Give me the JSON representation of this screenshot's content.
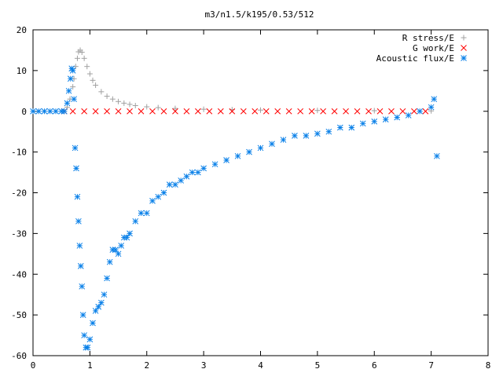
{
  "chart_data": {
    "type": "scatter",
    "title": "m3/n1.5/k195/0.53/512",
    "xlabel": "",
    "ylabel": "",
    "xlim": [
      0,
      8
    ],
    "ylim": [
      -60,
      20
    ],
    "xticks": [
      0,
      1,
      2,
      3,
      4,
      5,
      6,
      7,
      8
    ],
    "yticks": [
      -60,
      -50,
      -40,
      -30,
      -20,
      -10,
      0,
      10,
      20
    ],
    "grid": false,
    "legend_position": "top-right",
    "series": [
      {
        "name": "R stress/E",
        "marker": "plus",
        "color": "#a0a0a0",
        "x": [
          0.55,
          0.6,
          0.65,
          0.7,
          0.72,
          0.75,
          0.78,
          0.8,
          0.83,
          0.86,
          0.9,
          0.95,
          1.0,
          1.05,
          1.1,
          1.2,
          1.3,
          1.4,
          1.5,
          1.6,
          1.7,
          1.8,
          2.0,
          2.2,
          2.5,
          3.0,
          3.5,
          4.0,
          5.0,
          6.0,
          7.0
        ],
        "y": [
          0,
          1,
          3,
          6,
          8,
          11,
          13,
          14.6,
          15,
          14.5,
          13,
          11,
          9.2,
          7.6,
          6.4,
          4.8,
          3.7,
          3,
          2.4,
          2,
          1.7,
          1.4,
          1.1,
          0.9,
          0.7,
          0.5,
          0.4,
          0.3,
          0.2,
          0.15,
          0.1
        ]
      },
      {
        "name": "G work/E",
        "marker": "cross",
        "color": "#ff0000",
        "x": [
          0.55,
          0.7,
          0.9,
          1.1,
          1.3,
          1.5,
          1.7,
          1.9,
          2.1,
          2.3,
          2.5,
          2.7,
          2.9,
          3.1,
          3.3,
          3.5,
          3.7,
          3.9,
          4.1,
          4.3,
          4.5,
          4.7,
          4.9,
          5.1,
          5.3,
          5.5,
          5.7,
          5.9,
          6.1,
          6.3,
          6.5,
          6.7,
          6.9
        ],
        "y": [
          0,
          0,
          0,
          0,
          0,
          0,
          0,
          0,
          0,
          0,
          0,
          0,
          0,
          0,
          0,
          0,
          0,
          0,
          0,
          0,
          0,
          0,
          0,
          0,
          0,
          0,
          0,
          0,
          0,
          0,
          0,
          0,
          0
        ]
      },
      {
        "name": "Acoustic flux/E",
        "marker": "star",
        "color": "#0a80e8",
        "x": [
          0,
          0.1,
          0.2,
          0.3,
          0.4,
          0.5,
          0.55,
          0.6,
          0.63,
          0.66,
          0.68,
          0.7,
          0.72,
          0.74,
          0.76,
          0.78,
          0.8,
          0.82,
          0.84,
          0.86,
          0.88,
          0.9,
          0.93,
          0.96,
          1.0,
          1.05,
          1.1,
          1.15,
          1.2,
          1.25,
          1.3,
          1.35,
          1.4,
          1.45,
          1.5,
          1.55,
          1.6,
          1.65,
          1.7,
          1.8,
          1.9,
          2.0,
          2.1,
          2.2,
          2.3,
          2.4,
          2.5,
          2.6,
          2.7,
          2.8,
          2.9,
          3.0,
          3.2,
          3.4,
          3.6,
          3.8,
          4.0,
          4.2,
          4.4,
          4.6,
          4.8,
          5.0,
          5.2,
          5.4,
          5.6,
          5.8,
          6.0,
          6.2,
          6.4,
          6.6,
          6.8,
          7.0,
          7.05,
          7.1
        ],
        "y": [
          0,
          0,
          0,
          0,
          0,
          0,
          0,
          2,
          5,
          8,
          10.5,
          10,
          3,
          -9,
          -14,
          -21,
          -27,
          -33,
          -38,
          -43,
          -50,
          -55,
          -58,
          -58,
          -56,
          -52,
          -49,
          -48,
          -47,
          -45,
          -41,
          -37,
          -34,
          -34,
          -35,
          -33,
          -31,
          -31,
          -30,
          -27,
          -25,
          -25,
          -22,
          -21,
          -20,
          -18,
          -18,
          -17,
          -16,
          -15,
          -15,
          -14,
          -13,
          -12,
          -11,
          -10,
          -9,
          -8,
          -7,
          -6,
          -6,
          -5.5,
          -5,
          -4,
          -4,
          -3,
          -2.5,
          -2,
          -1.5,
          -1,
          0,
          1,
          3,
          -11
        ]
      }
    ]
  }
}
